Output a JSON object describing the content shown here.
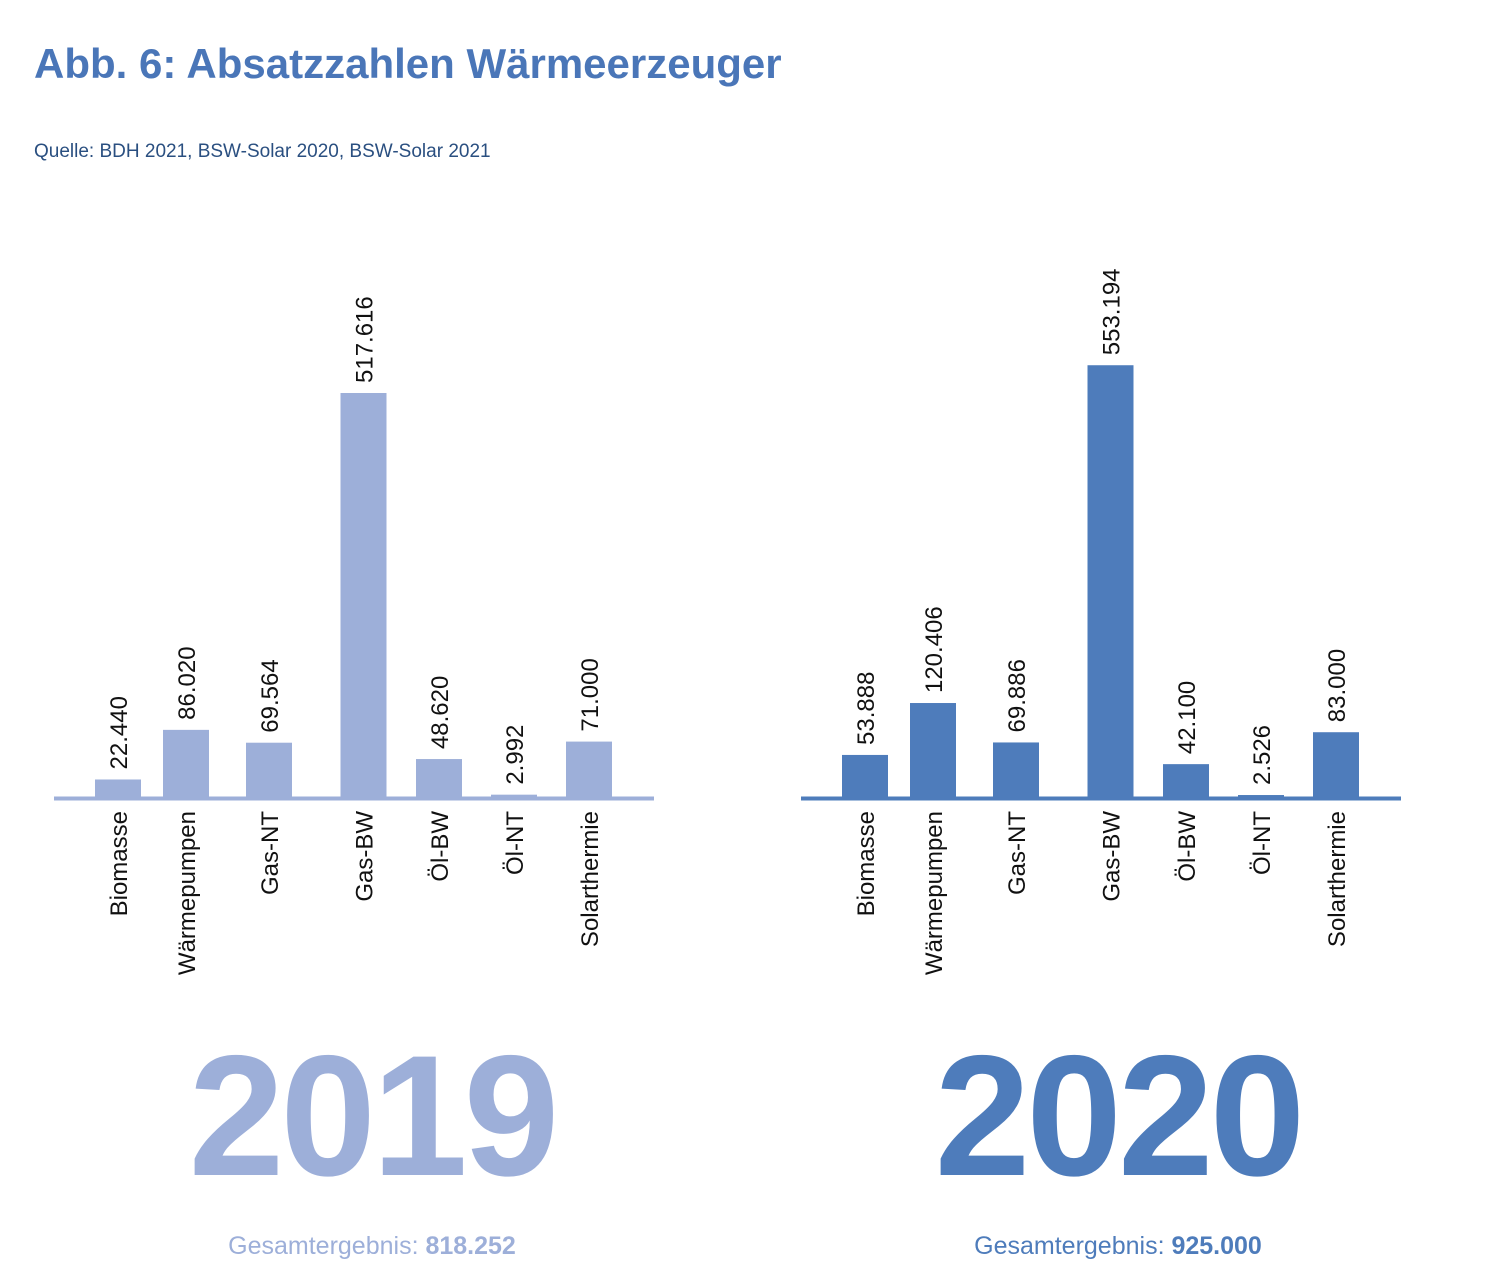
{
  "title": "Abb. 6: Absatzzahlen Wärmeerzeuger",
  "source": "Quelle: BDH 2021, BSW-Solar 2020, BSW-Solar 2021",
  "chart_data": [
    {
      "type": "bar",
      "year_label": "2019",
      "total_label": "Gesamtergebnis: ",
      "total_value": "818.252",
      "color": "#9dafd9",
      "categories": [
        "Biomasse",
        "Wärmepumpen",
        "Gas-NT",
        "Gas-BW",
        "Öl-BW",
        "Öl-NT",
        "Solarthermie"
      ],
      "values": [
        22440,
        86020,
        69564,
        517616,
        48620,
        2992,
        71000
      ],
      "value_labels": [
        "22.440",
        "86.020",
        "69.564",
        "517.616",
        "48.620",
        "2.992",
        "71.000"
      ]
    },
    {
      "type": "bar",
      "year_label": "2020",
      "total_label": "Gesamtergebnis: ",
      "total_value": "925.000",
      "color": "#4e7cbb",
      "categories": [
        "Biomasse",
        "Wärmepumpen",
        "Gas-NT",
        "Gas-BW",
        "Öl-BW",
        "Öl-NT",
        "Solarthermie"
      ],
      "values": [
        53888,
        120406,
        69886,
        553194,
        42100,
        2526,
        83000
      ],
      "value_labels": [
        "53.888",
        "120.406",
        "69.886",
        "553.194",
        "42.100",
        "2.526",
        "83.000"
      ]
    }
  ]
}
